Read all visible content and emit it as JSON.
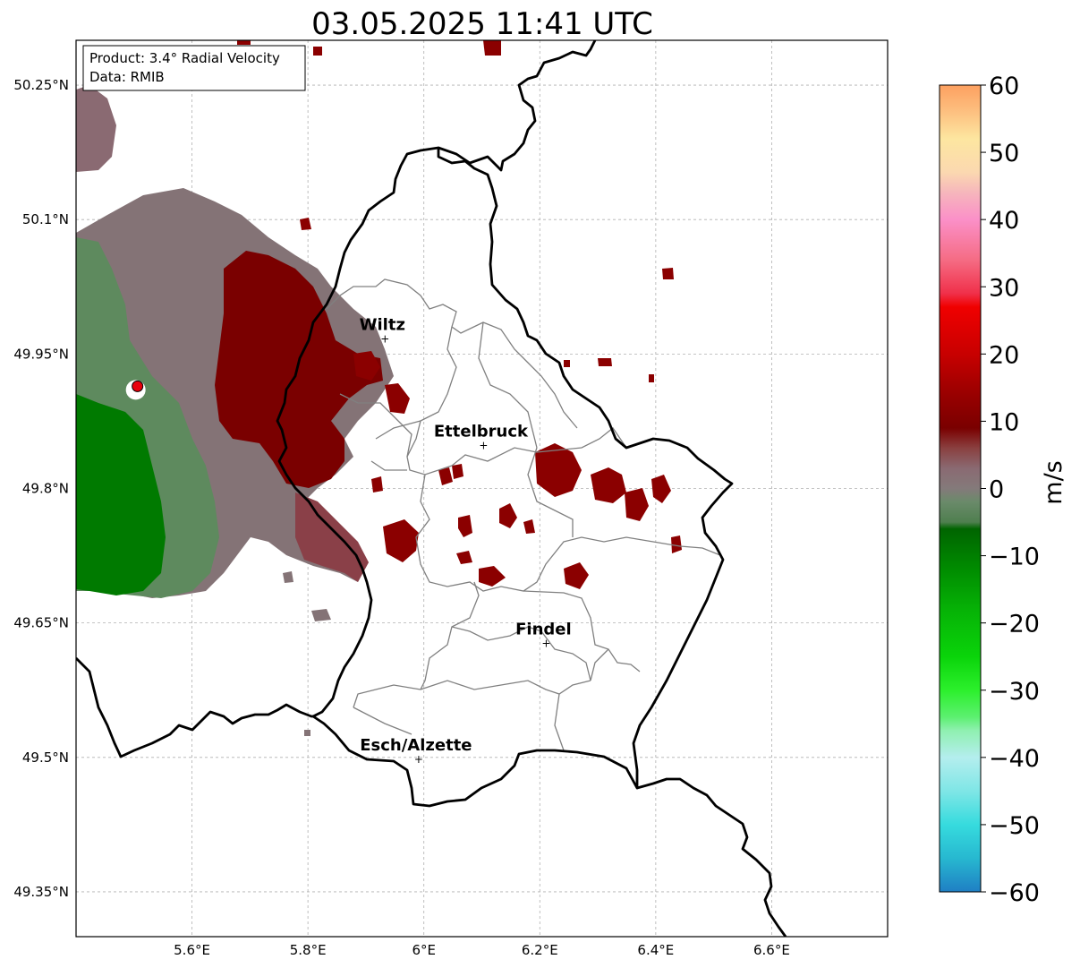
{
  "title": "03.05.2025 11:41 UTC",
  "info_box": {
    "product": "Product: 3.4° Radial Velocity",
    "source": "Data: RMIB"
  },
  "map_extent": {
    "lon": [
      5.4,
      6.8
    ],
    "lat": [
      49.3,
      50.3
    ]
  },
  "lon_ticks": [
    {
      "value": 5.6,
      "label": "5.6°E"
    },
    {
      "value": 5.8,
      "label": "5.8°E"
    },
    {
      "value": 6.0,
      "label": "6°E"
    },
    {
      "value": 6.2,
      "label": "6.2°E"
    },
    {
      "value": 6.4,
      "label": "6.4°E"
    },
    {
      "value": 6.6,
      "label": "6.6°E"
    }
  ],
  "lat_ticks": [
    {
      "value": 50.25,
      "label": "50.25°N"
    },
    {
      "value": 50.1,
      "label": "50.1°N"
    },
    {
      "value": 49.95,
      "label": "49.95°N"
    },
    {
      "value": 49.8,
      "label": "49.8°N"
    },
    {
      "value": 49.65,
      "label": "49.65°N"
    },
    {
      "value": 49.5,
      "label": "49.5°N"
    },
    {
      "value": 49.35,
      "label": "49.35°N"
    }
  ],
  "cities": [
    {
      "name": "Wiltz",
      "lon": 5.933,
      "lat": 49.967
    },
    {
      "name": "Ettelbruck",
      "lon": 6.103,
      "lat": 49.848
    },
    {
      "name": "Findel",
      "lon": 6.211,
      "lat": 49.627
    },
    {
      "name": "Esch/Alzette",
      "lon": 5.991,
      "lat": 49.498
    }
  ],
  "radar_site": {
    "lon": 5.506,
    "lat": 49.914,
    "color": "#e8000b"
  },
  "colorbar": {
    "label": "m/s",
    "range": [
      -60,
      60
    ],
    "ticks": [
      "60",
      "50",
      "40",
      "30",
      "20",
      "10",
      "0",
      "−10",
      "−20",
      "−30",
      "−40",
      "−50",
      "−60"
    ],
    "stops": [
      {
        "v": -60,
        "color": "#1f7fc4"
      },
      {
        "v": -55,
        "color": "#27b8d0"
      },
      {
        "v": -50,
        "color": "#36dbde"
      },
      {
        "v": -45,
        "color": "#7fe6e6"
      },
      {
        "v": -40,
        "color": "#b4eeee"
      },
      {
        "v": -36,
        "color": "#8ff0b0"
      },
      {
        "v": -34,
        "color": "#5cf070"
      },
      {
        "v": -30,
        "color": "#2cf02c"
      },
      {
        "v": -25,
        "color": "#0ad40a"
      },
      {
        "v": -18,
        "color": "#06b206"
      },
      {
        "v": -12,
        "color": "#008c00"
      },
      {
        "v": -6,
        "color": "#006400"
      },
      {
        "v": -5,
        "color": "#4f7f4f"
      },
      {
        "v": -2,
        "color": "#6a8a6a"
      },
      {
        "v": 0,
        "color": "#847a7a"
      },
      {
        "v": 3,
        "color": "#8a6a72"
      },
      {
        "v": 6,
        "color": "#8a4040"
      },
      {
        "v": 9,
        "color": "#7a0000"
      },
      {
        "v": 14,
        "color": "#990000"
      },
      {
        "v": 20,
        "color": "#c80000"
      },
      {
        "v": 27,
        "color": "#f00000"
      },
      {
        "v": 29,
        "color": "#f0304a"
      },
      {
        "v": 34,
        "color": "#f56c84"
      },
      {
        "v": 40,
        "color": "#fb90c8"
      },
      {
        "v": 44,
        "color": "#f6b6bc"
      },
      {
        "v": 47,
        "color": "#fbd8b0"
      },
      {
        "v": 52,
        "color": "#fde6a0"
      },
      {
        "v": 56,
        "color": "#fdc080"
      },
      {
        "v": 60,
        "color": "#fda060"
      }
    ]
  },
  "colors": {
    "green_dark": "#007a00",
    "green_muted": "#5e8a5e",
    "gray_mauve": "#847376",
    "mauve": "#8a5a64",
    "dark_red": "#8b0000"
  }
}
